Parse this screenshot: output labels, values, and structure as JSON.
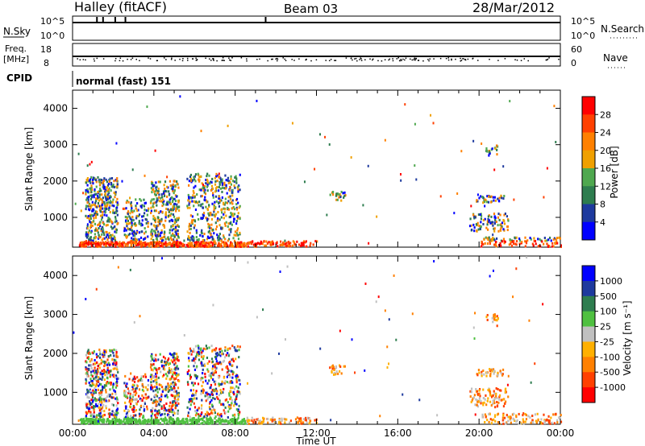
{
  "header": {
    "station": "Halley (fitACF)",
    "beam": "Beam 03",
    "date": "28/Mar/2012"
  },
  "top_panels": {
    "nsky_label": "N.Sky",
    "nsearch_label": "N.Search",
    "nsky_ticks": [
      "10^5",
      "10^0"
    ],
    "nsearch_ticks": [
      "10^5",
      "10^0"
    ],
    "freq_label_1": "Freq.",
    "freq_label_2": "[MHz]",
    "freq_ticks": [
      "18",
      "8"
    ],
    "nave_label": "Nave",
    "nave_ticks": [
      "60",
      "0"
    ],
    "cpid_label": "CPID",
    "cpid_value": "normal (fast) 151"
  },
  "colors": {
    "power_scale": [
      "#0000ff",
      "#1e3a9e",
      "#2e7d4f",
      "#4fa84f",
      "#f0a000",
      "#ff8000",
      "#ff4000",
      "#ff0000"
    ],
    "velocity_scale": [
      "#ff0000",
      "#ff4000",
      "#ff8000",
      "#ffb000",
      "#c0c0c0",
      "#4fc040",
      "#2e7d4f",
      "#1e3a9e",
      "#0000ff"
    ]
  },
  "chart_data": [
    {
      "type": "heatmap",
      "panel": "power",
      "ylabel": "Slant Range [km]",
      "ylim": [
        180,
        4500
      ],
      "yticks": [
        "1000",
        "2000",
        "3000",
        "4000"
      ],
      "xlim": [
        "00:00",
        "24:00"
      ],
      "colorbar_label": "Power [dB]",
      "colorbar_ticks": [
        "4",
        "8",
        "12",
        "16",
        "20",
        "24",
        "28"
      ],
      "scatter_regions": [
        {
          "t_start": 0.0,
          "t_end": 8.2,
          "r_min": 200,
          "r_max": 2200,
          "note": "dense echoes"
        },
        {
          "t_start": 12.5,
          "t_end": 13.5,
          "r_min": 1400,
          "r_max": 1700
        },
        {
          "t_start": 19.5,
          "t_end": 21.5,
          "r_min": 300,
          "r_max": 3000
        }
      ]
    },
    {
      "type": "heatmap",
      "panel": "velocity",
      "ylabel": "Slant Range [km]",
      "ylim": [
        180,
        4500
      ],
      "yticks": [
        "1000",
        "2000",
        "3000",
        "4000"
      ],
      "xlim": [
        "00:00",
        "24:00"
      ],
      "xticks": [
        "00:00",
        "04:00",
        "08:00",
        "12:00",
        "16:00",
        "20:00",
        "00:00"
      ],
      "xlabel": "Time UT",
      "colorbar_label": "Velocity [m s⁻¹]",
      "colorbar_ticks": [
        "1000",
        "500",
        "100",
        "25",
        "-25",
        "-100",
        "-500",
        "-1000"
      ]
    }
  ]
}
